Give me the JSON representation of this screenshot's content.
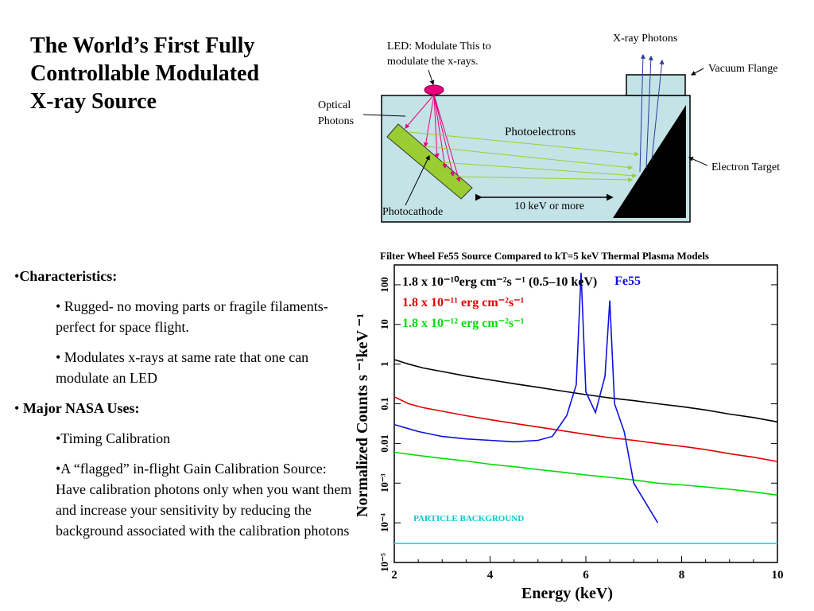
{
  "slide": {
    "title_lines": [
      "The World’s First Fully",
      "Controllable Modulated",
      "X-ray Source"
    ]
  },
  "bullets": {
    "characteristics": "Characteristics:",
    "rugged": "• Rugged- no moving parts or fragile filaments- perfect for space flight.",
    "modulates": "• Modulates x-rays at same rate that one can modulate an LED",
    "nasa_uses": "Major NASA Uses:",
    "timing": "•Timing Calibration",
    "flagged": "•A “flagged” in-flight Gain Calibration Source: Have calibration photons only when you want them and increase your sensitivity by reducing the background associated with the calibration photons"
  },
  "diagram": {
    "led_label_1": "LED: Modulate This to",
    "led_label_2": "modulate the x-rays.",
    "xray_photons": "X-ray Photons",
    "vacuum_flange": "Vacuum Flange",
    "optical_1": "Optical",
    "optical_2": "Photons",
    "photoelectrons": "Photoelectrons",
    "electron_target": "Electron Target",
    "photocathode": "Photocathode",
    "energy_gap": "10 keV or more",
    "colors": {
      "chamber": "#c4e3e6",
      "photocathode": "#9acd32",
      "led": "#e6007e",
      "target": "#000000",
      "xray_arrow": "#2b3a9b"
    }
  },
  "chart_data": {
    "type": "line",
    "title": "Filter Wheel Fe55 Source Compared to kT=5 keV Thermal Plasma Models",
    "xlabel": "Energy (keV)",
    "ylabel": "Normalized Counts s ⁻¹keV ⁻¹",
    "xlim": [
      2,
      10
    ],
    "ylim_log10": [
      -5,
      2.5
    ],
    "log_y": true,
    "x_ticks": [
      2,
      4,
      6,
      8,
      10
    ],
    "y_ticks": [
      {
        "value": 100,
        "label": "100"
      },
      {
        "value": 10,
        "label": "10"
      },
      {
        "value": 1,
        "label": "1"
      },
      {
        "value": 0.1,
        "label": "0.1"
      },
      {
        "value": 0.01,
        "label": "0.01"
      },
      {
        "value": 0.001,
        "label": "10⁻³"
      },
      {
        "value": 0.0001,
        "label": "10⁻⁴"
      },
      {
        "value": 1e-05,
        "label": "10⁻⁵"
      }
    ],
    "legend": [
      {
        "text": "1.8 x 10⁻¹⁰erg cm⁻²s ⁻¹ (0.5–10 keV)",
        "color": "#000000"
      },
      {
        "text": "1.8 x 10⁻¹¹ erg cm⁻²s⁻¹",
        "color": "#e00000"
      },
      {
        "text": "1.8 x 10⁻¹² erg cm⁻²s⁻¹",
        "color": "#00dd00"
      }
    ],
    "annotations": [
      {
        "text": "Fe55",
        "x": 6.6,
        "y": 100,
        "color": "#1010e0"
      },
      {
        "text": "PARTICLE BACKGROUND",
        "x": 2.4,
        "y": 0.00011,
        "color": "#00cccc"
      }
    ],
    "series": [
      {
        "color": "#000000",
        "x": [
          2.0,
          2.3,
          2.6,
          3.0,
          3.5,
          4.0,
          4.5,
          5.0,
          5.5,
          6.0,
          6.5,
          7.0,
          7.5,
          8.0,
          8.5,
          9.0,
          9.5,
          10.0
        ],
        "y": [
          1.3,
          1.0,
          0.8,
          0.65,
          0.5,
          0.4,
          0.32,
          0.26,
          0.21,
          0.17,
          0.14,
          0.12,
          0.1,
          0.085,
          0.07,
          0.055,
          0.045,
          0.035
        ]
      },
      {
        "color": "#e00000",
        "x": [
          2.0,
          2.3,
          2.6,
          3.0,
          3.5,
          4.0,
          4.5,
          5.0,
          5.5,
          6.0,
          6.5,
          7.0,
          7.5,
          8.0,
          8.5,
          9.0,
          9.5,
          10.0
        ],
        "y": [
          0.15,
          0.1,
          0.08,
          0.065,
          0.05,
          0.04,
          0.032,
          0.026,
          0.021,
          0.017,
          0.014,
          0.012,
          0.01,
          0.0085,
          0.007,
          0.0055,
          0.0045,
          0.0035
        ]
      },
      {
        "color": "#00dd00",
        "x": [
          2.0,
          2.5,
          3.0,
          3.5,
          4.0,
          4.5,
          5.0,
          5.5,
          6.0,
          6.5,
          7.0,
          7.5,
          8.0,
          8.5,
          9.0,
          9.5,
          10.0
        ],
        "y": [
          0.006,
          0.005,
          0.0042,
          0.0036,
          0.003,
          0.0026,
          0.0022,
          0.0019,
          0.0016,
          0.0014,
          0.0012,
          0.001,
          0.0009,
          0.0008,
          0.0007,
          0.0006,
          0.0005
        ]
      },
      {
        "color": "#1010e0",
        "x": [
          2.0,
          2.5,
          3.0,
          3.5,
          4.0,
          4.5,
          5.0,
          5.3,
          5.6,
          5.8,
          5.9,
          6.0,
          6.2,
          6.4,
          6.5,
          6.6,
          6.8,
          7.0,
          7.5
        ],
        "y": [
          0.03,
          0.02,
          0.015,
          0.013,
          0.012,
          0.011,
          0.012,
          0.015,
          0.05,
          0.3,
          200,
          0.2,
          0.06,
          0.5,
          40,
          0.1,
          0.02,
          0.001,
          0.0001
        ]
      },
      {
        "color": "#00e5ee",
        "x": [
          2.0,
          3.0,
          4.0,
          5.0,
          6.0,
          7.0,
          8.0,
          9.0,
          10.0
        ],
        "y": [
          3e-05,
          3e-05,
          3e-05,
          3e-05,
          3e-05,
          3e-05,
          3e-05,
          3e-05,
          3e-05
        ]
      }
    ]
  }
}
